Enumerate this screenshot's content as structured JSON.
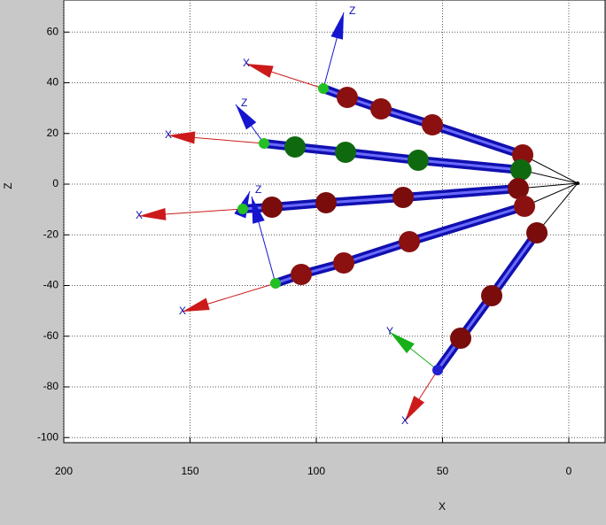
{
  "axes": {
    "x_label": "X",
    "z_label": "Z",
    "x_ticks": [
      200,
      150,
      100,
      50,
      0
    ],
    "z_ticks": [
      60,
      40,
      20,
      0,
      -20,
      -40,
      -60,
      -80,
      -100
    ]
  },
  "frame_labels": {
    "finger_1_x": "X",
    "finger_1_z": "Z",
    "finger_2_x": "X",
    "finger_2_z": "Z",
    "finger_3_x": "X",
    "finger_3_z": "Z",
    "finger_4_x": "X",
    "thumb_x": "X",
    "thumb_y": "Y"
  }
}
